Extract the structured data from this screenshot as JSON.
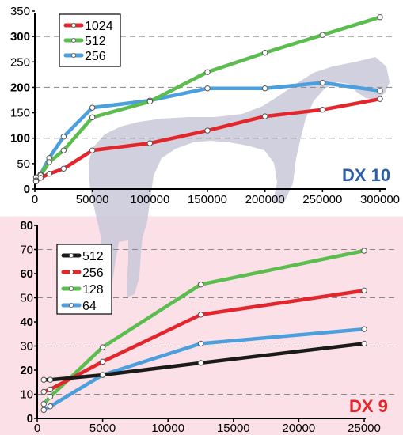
{
  "colors": {
    "top_background": "#ffffff",
    "bottom_background": "#fbe1e7",
    "horse_silhouette": "#c9c8d8",
    "grid": "#888888",
    "dx10_label": "#2d5ea8",
    "dx9_label": "#e3262c"
  },
  "chart_data": [
    {
      "type": "line",
      "panel_label": "DX 10",
      "x_ticks": [
        "0",
        "50000",
        "100000",
        "150000",
        "200000",
        "250000",
        "300000"
      ],
      "y_ticks": [
        "0",
        "50",
        "100",
        "150",
        "200",
        "250",
        "300",
        "350"
      ],
      "bold_y_ticks": [
        "0",
        "100",
        "200",
        "300"
      ],
      "xlim": [
        0,
        300000
      ],
      "ylim": [
        0,
        350
      ],
      "grid": "dashed horizontal at 100, 200, 300",
      "legend_position": "top-left",
      "series": [
        {
          "name": "1024",
          "color": "#e3262c",
          "points": [
            [
              1000,
              15
            ],
            [
              5000,
              22
            ],
            [
              12500,
              30
            ],
            [
              25000,
              40
            ],
            [
              50000,
              76
            ],
            [
              100000,
              90
            ],
            [
              150000,
              115
            ],
            [
              200000,
              143
            ],
            [
              250000,
              156
            ],
            [
              300000,
              177
            ]
          ]
        },
        {
          "name": "512",
          "color": "#5bbd4e",
          "points": [
            [
              1000,
              17
            ],
            [
              5000,
              27
            ],
            [
              12500,
              53
            ],
            [
              25000,
              76
            ],
            [
              50000,
              141
            ],
            [
              100000,
              172
            ],
            [
              150000,
              230
            ],
            [
              200000,
              268
            ],
            [
              250000,
              303
            ],
            [
              300000,
              338
            ]
          ]
        },
        {
          "name": "256",
          "color": "#4a9fdc",
          "points": [
            [
              1000,
              23
            ],
            [
              5000,
              29
            ],
            [
              12500,
              61
            ],
            [
              25000,
              103
            ],
            [
              50000,
              160
            ],
            [
              100000,
              174
            ],
            [
              150000,
              198
            ],
            [
              200000,
              198
            ],
            [
              250000,
              209
            ],
            [
              300000,
              193
            ]
          ]
        }
      ]
    },
    {
      "type": "line",
      "panel_label": "DX 9",
      "x_ticks": [
        "0",
        "5000",
        "10000",
        "15000",
        "20000",
        "25000"
      ],
      "y_ticks": [
        "0",
        "10",
        "20",
        "30",
        "40",
        "50",
        "60",
        "70",
        "80"
      ],
      "bold_y_ticks": [
        "0",
        "20",
        "40",
        "60",
        "80"
      ],
      "xlim": [
        0,
        25000
      ],
      "ylim": [
        0,
        80
      ],
      "grid": "dashed horizontal at 10, 30, 50, 70",
      "legend_position": "top-left",
      "series": [
        {
          "name": "512",
          "color": "#1a1a1a",
          "points": [
            [
              500,
              16
            ],
            [
              1000,
              16
            ],
            [
              5000,
              18
            ],
            [
              12500,
              23
            ],
            [
              25000,
              31
            ]
          ]
        },
        {
          "name": "256",
          "color": "#e3262c",
          "points": [
            [
              500,
              11
            ],
            [
              1000,
              12
            ],
            [
              5000,
              23.5
            ],
            [
              12500,
              43
            ],
            [
              25000,
              53
            ]
          ]
        },
        {
          "name": "128",
          "color": "#5bbd4e",
          "points": [
            [
              500,
              6
            ],
            [
              1000,
              9
            ],
            [
              5000,
              29.5
            ],
            [
              12500,
              55.5
            ],
            [
              25000,
              69.5
            ]
          ]
        },
        {
          "name": "64",
          "color": "#4a9fdc",
          "points": [
            [
              500,
              3.5
            ],
            [
              1000,
              5
            ],
            [
              5000,
              18
            ],
            [
              12500,
              31
            ],
            [
              25000,
              37
            ]
          ]
        }
      ]
    }
  ]
}
